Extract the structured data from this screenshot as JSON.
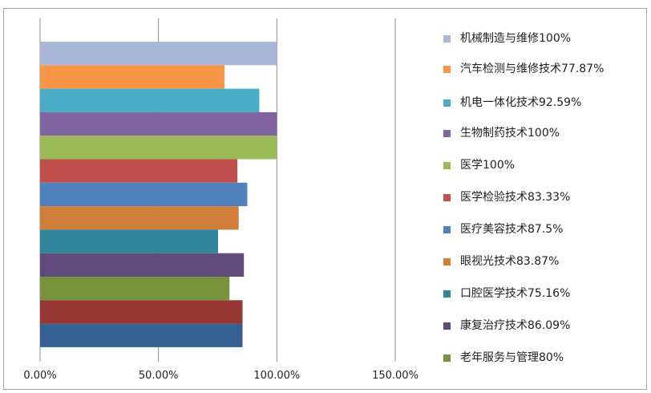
{
  "chart_data": {
    "type": "bar",
    "orientation": "horizontal",
    "title": "",
    "xlabel": "",
    "ylabel": "",
    "xlim": [
      0,
      150
    ],
    "x_ticks": [
      "0.00%",
      "50.00%",
      "100.00%",
      "150.00%"
    ],
    "grid": "vertical major gridlines",
    "legend_position": "right",
    "series": [
      {
        "name": "机械制造与维修100%",
        "value": 100,
        "color": "#a9b8d9"
      },
      {
        "name": "汽车检测与维修技术77.87%",
        "value": 77.87,
        "color": "#f79646"
      },
      {
        "name": "机电一体化技术92.59%",
        "value": 92.59,
        "color": "#4bacc6"
      },
      {
        "name": "生物制药技术100%",
        "value": 100,
        "color": "#8064a2"
      },
      {
        "name": "医学100%",
        "value": 100,
        "color": "#9bbb59"
      },
      {
        "name": "医学检验技术83.33%",
        "value": 83.33,
        "color": "#c0504d"
      },
      {
        "name": "医疗美容技术87.5%",
        "value": 87.5,
        "color": "#4f81bd"
      },
      {
        "name": "眼视光技术83.87%",
        "value": 83.87,
        "color": "#d07f3a"
      },
      {
        "name": "口腔医学技术75.16%",
        "value": 75.16,
        "color": "#31859c"
      },
      {
        "name": "康复治疗技术86.09%",
        "value": 86.09,
        "color": "#604a7b"
      },
      {
        "name": "老年服务与管理80%",
        "value": 80,
        "color": "#77933c"
      },
      {
        "name": "",
        "value": 85.5,
        "color": "#953735"
      },
      {
        "name": "",
        "value": 85.5,
        "color": "#376092"
      }
    ]
  }
}
